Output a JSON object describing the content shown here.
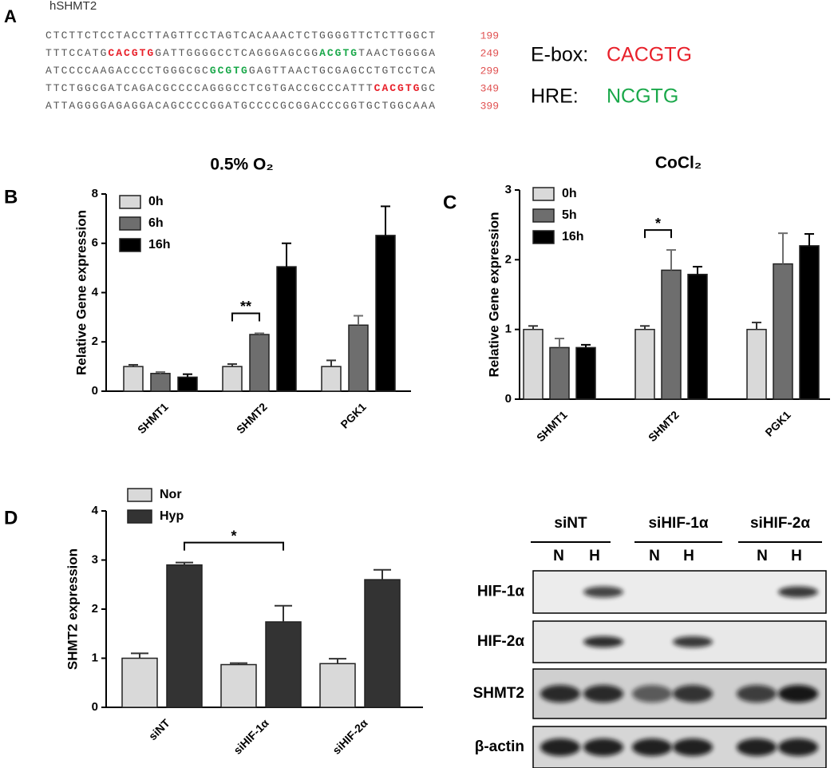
{
  "panel_a": {
    "label": "A",
    "title": "hSHMT2",
    "lines": [
      {
        "segments": [
          {
            "text": "CTCTTCTCCTACCTTAGTTCCTAGTCACAAACTCTGGGGTTCTCTTGGCT",
            "color": "#555555"
          }
        ],
        "number": 199
      },
      {
        "segments": [
          {
            "text": "TTTCCATG",
            "color": "#555555"
          },
          {
            "text": "CACGTG",
            "color": "#e8202a",
            "bold": true
          },
          {
            "text": "GATTGGGGCCTCAGGGAGCGG",
            "color": "#555555"
          },
          {
            "text": "ACGTG",
            "color": "#1aa84a",
            "bold": true
          },
          {
            "text": "TAACTGGGGA",
            "color": "#555555"
          }
        ],
        "number": 249
      },
      {
        "segments": [
          {
            "text": "ATCCCCAAGACCCCTGGGCGC",
            "color": "#555555"
          },
          {
            "text": "GCGTG",
            "color": "#1aa84a",
            "bold": true
          },
          {
            "text": "GAGTTAACTGCGAGCCTGTCCTCA",
            "color": "#555555"
          }
        ],
        "number": 299
      },
      {
        "segments": [
          {
            "text": "TTCTGGCGATCAGACGCCCCAGGGCCTCGTGACCGCCCATTT",
            "color": "#555555"
          },
          {
            "text": "CACGTG",
            "color": "#e8202a",
            "bold": true
          },
          {
            "text": "GC",
            "color": "#555555"
          }
        ],
        "number": 349
      },
      {
        "segments": [
          {
            "text": "ATTAGGGGAGAGGACAGCCCCGGATGCCCCGCGGACCCGGTGCTGGCAAA",
            "color": "#555555"
          }
        ],
        "number": 399
      }
    ],
    "legend": [
      {
        "label": "E-box:",
        "motif": "CACGTG",
        "color": "#e8202a"
      },
      {
        "label": "HRE:",
        "motif": "NCGTG",
        "color": "#1aa84a"
      }
    ]
  },
  "chart_data": [
    {
      "type": "bar",
      "label": "B",
      "title": "0.5% O₂",
      "y_label": "Relative Gene expression",
      "categories": [
        "SHMT1",
        "SHMT2",
        "PGK1"
      ],
      "series": [
        {
          "name": "0h",
          "color": "#d9d9d9",
          "values": [
            1.0,
            1.0,
            1.0
          ],
          "errors": [
            0.07,
            0.1,
            0.25
          ]
        },
        {
          "name": "6h",
          "color": "#6e6e6e",
          "values": [
            0.72,
            2.3,
            2.68
          ],
          "errors": [
            0.06,
            0.05,
            0.38
          ]
        },
        {
          "name": "16h",
          "color": "#000000",
          "values": [
            0.57,
            5.05,
            6.32
          ],
          "errors": [
            0.12,
            0.95,
            1.18
          ]
        }
      ],
      "ylim": [
        0,
        8
      ],
      "yticks": [
        0,
        2,
        4,
        6,
        8
      ],
      "annotations": [
        {
          "text": "**"
        }
      ]
    },
    {
      "type": "bar",
      "label": "C",
      "title": "CoCl₂",
      "y_label": "Relative Gene expression",
      "categories": [
        "SHMT1",
        "SHMT2",
        "PGK1"
      ],
      "series": [
        {
          "name": "0h",
          "color": "#d9d9d9",
          "values": [
            1.0,
            1.0,
            1.0
          ],
          "errors": [
            0.05,
            0.05,
            0.1
          ]
        },
        {
          "name": "5h",
          "color": "#6e6e6e",
          "values": [
            0.74,
            1.85,
            1.94
          ],
          "errors": [
            0.13,
            0.29,
            0.44
          ]
        },
        {
          "name": "16h",
          "color": "#000000",
          "values": [
            0.74,
            1.79,
            2.2
          ],
          "errors": [
            0.04,
            0.11,
            0.17
          ]
        }
      ],
      "ylim": [
        0,
        3
      ],
      "yticks": [
        0,
        1,
        2,
        3
      ],
      "annotations": [
        {
          "text": "*"
        }
      ]
    },
    {
      "type": "bar",
      "label": "D",
      "y_label": "SHMT2 expression",
      "categories": [
        "siNT",
        "siHIF-1α",
        "siHIF-2α"
      ],
      "series": [
        {
          "name": "Nor",
          "color": "#d9d9d9",
          "values": [
            1.0,
            0.87,
            0.89
          ],
          "errors": [
            0.1,
            0.03,
            0.1
          ]
        },
        {
          "name": "Hyp",
          "color": "#333333",
          "values": [
            2.9,
            1.74,
            2.6
          ],
          "errors": [
            0.05,
            0.33,
            0.2
          ]
        }
      ],
      "ylim": [
        0,
        4
      ],
      "yticks": [
        0,
        1,
        2,
        3,
        4
      ],
      "annotations": [
        {
          "text": "*"
        }
      ]
    }
  ],
  "blot": {
    "groups": [
      {
        "name": "siNT",
        "lanes": [
          "N",
          "H"
        ]
      },
      {
        "name": "siHIF-1α",
        "lanes": [
          "N",
          "H"
        ]
      },
      {
        "name": "siHIF-2α",
        "lanes": [
          "N",
          "H"
        ]
      }
    ],
    "rows": [
      "HIF-1α",
      "HIF-2α",
      "SHMT2",
      "β-actin"
    ]
  }
}
